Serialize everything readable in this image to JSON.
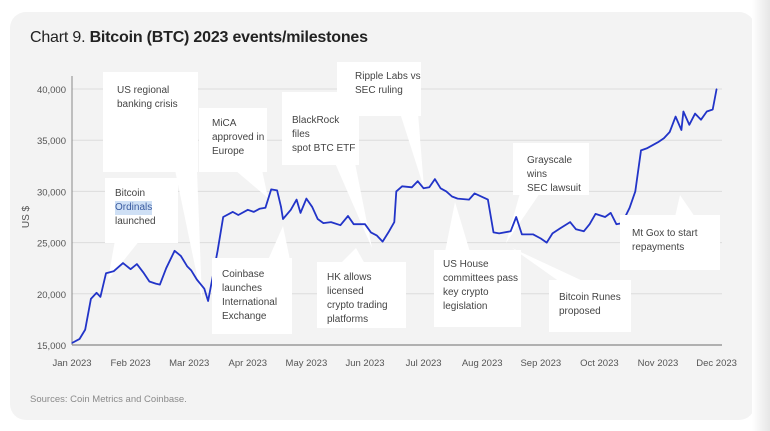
{
  "header": {
    "title_prefix": "Chart 9.",
    "title_bold": "Bitcoin (BTC) 2023 events/milestones"
  },
  "source": "Sources: Coin Metrics and Coinbase.",
  "colors": {
    "line": "#2234c8",
    "background": "#f3f3f3",
    "grid": "#dcdcdc",
    "annotation_box": "#ffffff",
    "highlight": "#cfe0f5"
  },
  "chart_data": {
    "type": "line",
    "title": "Bitcoin (BTC) 2023 events/milestones",
    "ylabel": "US $",
    "xlabel": "",
    "ylim": [
      15000,
      40000
    ],
    "yticks": [
      15000,
      20000,
      25000,
      30000,
      35000,
      40000
    ],
    "ytick_labels": [
      "15,000",
      "20,000",
      "25,000",
      "30,000",
      "35,000",
      "40,000"
    ],
    "xtick_labels": [
      "Jan 2023",
      "Feb 2023",
      "Mar 2023",
      "Apr 2023",
      "May 2023",
      "Jun 2023",
      "Jul 2023",
      "Aug 2023",
      "Sep 2023",
      "Oct 2023",
      "Nov 2023",
      "Dec 2023"
    ],
    "grid": "horizontal",
    "series": [
      {
        "values": [
          [
            "2023-01-01",
            15200
          ],
          [
            "2023-01-05",
            15600
          ],
          [
            "2023-01-08",
            16500
          ],
          [
            "2023-01-11",
            19500
          ],
          [
            "2023-01-14",
            20100
          ],
          [
            "2023-01-16",
            19700
          ],
          [
            "2023-01-19",
            22000
          ],
          [
            "2023-01-23",
            22200
          ],
          [
            "2023-01-28",
            23000
          ],
          [
            "2023-02-01",
            22400
          ],
          [
            "2023-02-04",
            22900
          ],
          [
            "2023-02-07",
            22100
          ],
          [
            "2023-02-10",
            21200
          ],
          [
            "2023-02-13",
            21000
          ],
          [
            "2023-02-15",
            20900
          ],
          [
            "2023-02-18",
            22500
          ],
          [
            "2023-02-22",
            24200
          ],
          [
            "2023-02-25",
            23700
          ],
          [
            "2023-02-28",
            22700
          ],
          [
            "2023-03-02",
            22300
          ],
          [
            "2023-03-05",
            21400
          ],
          [
            "2023-03-09",
            20500
          ],
          [
            "2023-03-11",
            19300
          ],
          [
            "2023-03-16",
            24200
          ],
          [
            "2023-03-19",
            27500
          ],
          [
            "2023-03-24",
            28000
          ],
          [
            "2023-03-27",
            27700
          ],
          [
            "2023-04-01",
            28200
          ],
          [
            "2023-04-04",
            28000
          ],
          [
            "2023-04-07",
            28300
          ],
          [
            "2023-04-10",
            28400
          ],
          [
            "2023-04-13",
            30200
          ],
          [
            "2023-04-16",
            30100
          ],
          [
            "2023-04-18",
            28500
          ],
          [
            "2023-04-19",
            27300
          ],
          [
            "2023-04-23",
            28200
          ],
          [
            "2023-04-26",
            29200
          ],
          [
            "2023-04-28",
            27900
          ],
          [
            "2023-05-01",
            29300
          ],
          [
            "2023-05-04",
            28500
          ],
          [
            "2023-05-07",
            27300
          ],
          [
            "2023-05-10",
            26900
          ],
          [
            "2023-05-14",
            27000
          ],
          [
            "2023-05-19",
            26700
          ],
          [
            "2023-05-23",
            27600
          ],
          [
            "2023-05-26",
            26800
          ],
          [
            "2023-06-01",
            26800
          ],
          [
            "2023-06-04",
            26000
          ],
          [
            "2023-06-07",
            25700
          ],
          [
            "2023-06-10",
            25100
          ],
          [
            "2023-06-13",
            26000
          ],
          [
            "2023-06-16",
            27000
          ],
          [
            "2023-06-17",
            30000
          ],
          [
            "2023-06-20",
            30500
          ],
          [
            "2023-06-25",
            30400
          ],
          [
            "2023-06-28",
            31000
          ],
          [
            "2023-07-01",
            30300
          ],
          [
            "2023-07-04",
            30400
          ],
          [
            "2023-07-07",
            31200
          ],
          [
            "2023-07-10",
            30300
          ],
          [
            "2023-07-13",
            30000
          ],
          [
            "2023-07-16",
            29500
          ],
          [
            "2023-07-19",
            29300
          ],
          [
            "2023-07-25",
            29200
          ],
          [
            "2023-07-28",
            29800
          ],
          [
            "2023-08-04",
            29200
          ],
          [
            "2023-08-07",
            26000
          ],
          [
            "2023-08-10",
            25900
          ],
          [
            "2023-08-16",
            26100
          ],
          [
            "2023-08-19",
            27500
          ],
          [
            "2023-08-22",
            25800
          ],
          [
            "2023-08-28",
            25800
          ],
          [
            "2023-09-01",
            25400
          ],
          [
            "2023-09-04",
            25000
          ],
          [
            "2023-09-07",
            25900
          ],
          [
            "2023-09-11",
            26400
          ],
          [
            "2023-09-16",
            27000
          ],
          [
            "2023-09-19",
            26300
          ],
          [
            "2023-09-23",
            26100
          ],
          [
            "2023-09-26",
            26800
          ],
          [
            "2023-09-29",
            27800
          ],
          [
            "2023-10-04",
            27500
          ],
          [
            "2023-10-07",
            27900
          ],
          [
            "2023-10-10",
            26800
          ],
          [
            "2023-10-13",
            26900
          ],
          [
            "2023-10-17",
            28400
          ],
          [
            "2023-10-20",
            30000
          ],
          [
            "2023-10-23",
            34000
          ],
          [
            "2023-10-26",
            34200
          ],
          [
            "2023-11-01",
            34800
          ],
          [
            "2023-11-04",
            35200
          ],
          [
            "2023-11-07",
            35800
          ],
          [
            "2023-11-10",
            37300
          ],
          [
            "2023-11-13",
            36000
          ],
          [
            "2023-11-14",
            37800
          ],
          [
            "2023-11-17",
            36500
          ],
          [
            "2023-11-20",
            37600
          ],
          [
            "2023-11-23",
            37000
          ],
          [
            "2023-11-26",
            37800
          ],
          [
            "2023-11-29",
            38000
          ],
          [
            "2023-12-01",
            40000
          ]
        ]
      }
    ],
    "annotations": [
      {
        "text": "US regional\nbanking crisis"
      },
      {
        "text_before": "Bitcoin",
        "text_highlight": "Ordinals",
        "text_after": "launched"
      },
      {
        "text": "MiCA\napproved in\nEurope"
      },
      {
        "text": "BlackRock files\nspot BTC ETF"
      },
      {
        "text": "Ripple Labs vs\nSEC ruling"
      },
      {
        "text": "Grayscale wins\nSEC lawsuit"
      },
      {
        "text": "Coinbase\nlaunches\nInternational\nExchange"
      },
      {
        "text": "HK allows licensed\ncrypto trading\nplatforms"
      },
      {
        "text": "US House\ncommittees pass\nkey crypto\nlegislation"
      },
      {
        "text": "Bitcoin Runes\nproposed"
      },
      {
        "text": "Mt Gox to start\nrepayments"
      }
    ]
  }
}
